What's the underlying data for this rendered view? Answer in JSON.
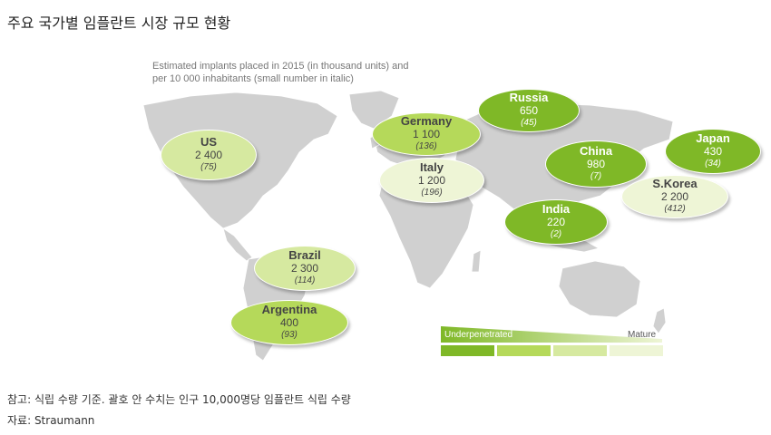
{
  "title": "주요 국가별 임플란트 시장 규모 현황",
  "subtitle_line1": "Estimated implants placed in 2015 (in thousand units) and",
  "subtitle_line2": "per 10 000 inhabitants (small number in italic)",
  "colors": {
    "level1": "#7fb827",
    "level2": "#b5d95a",
    "level3": "#d6e9a0",
    "level4": "#eef5d6",
    "land": "#d0d0d0",
    "ocean": "#ffffff"
  },
  "countries": [
    {
      "name": "US",
      "value": "2 400",
      "per10k": "(75)",
      "level": 3
    },
    {
      "name": "Germany",
      "value": "1 100",
      "per10k": "(136)",
      "level": 2
    },
    {
      "name": "Russia",
      "value": "650",
      "per10k": "(45)",
      "level": 1
    },
    {
      "name": "China",
      "value": "980",
      "per10k": "(7)",
      "level": 1
    },
    {
      "name": "Japan",
      "value": "430",
      "per10k": "(34)",
      "level": 1
    },
    {
      "name": "Italy",
      "value": "1 200",
      "per10k": "(196)",
      "level": 4
    },
    {
      "name": "S.Korea",
      "value": "2 200",
      "per10k": "(412)",
      "level": 4
    },
    {
      "name": "India",
      "value": "220",
      "per10k": "(2)",
      "level": 1
    },
    {
      "name": "Brazil",
      "value": "2 300",
      "per10k": "(114)",
      "level": 3
    },
    {
      "name": "Argentina",
      "value": "400",
      "per10k": "(93)",
      "level": 2
    }
  ],
  "legend": {
    "left_label": "Underpenetrated",
    "right_label": "Mature"
  },
  "note": "참고: 식립 수량 기준. 괄호 안 수치는 인구 10,000명당 임플란트 식립 수량",
  "source": "자료: Straumann"
}
